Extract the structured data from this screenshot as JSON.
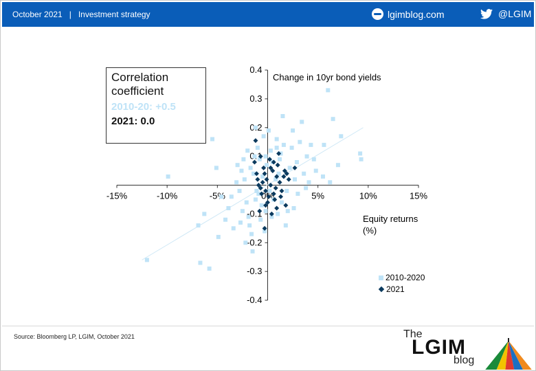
{
  "header": {
    "date": "October 2021",
    "separator": "|",
    "section": "Investment strategy",
    "blog_link": "lgimblog.com",
    "twitter": "@LGIM",
    "color": "#0a5db8"
  },
  "icons": [
    "web-icon",
    "twitter-bird-icon"
  ],
  "correlation_box": {
    "title_line1": "Correlation",
    "title_line2": "coefficient",
    "line_2010": "2010-20:  +0.5",
    "line_2021": "2021:  0.0"
  },
  "footer": {
    "source": "Source: Bloomberg LP, LGIM, October 2021",
    "logo_the": "The",
    "logo_main": "LGIM",
    "logo_blog": "blog"
  },
  "chart_data": {
    "type": "scatter",
    "title": "",
    "xlabel": "Equity returns (%)",
    "xlabel_line1": "Equity returns",
    "xlabel_line2": "(%)",
    "ylabel": "Change in 10yr bond yields",
    "xlim": [
      -15,
      15
    ],
    "ylim": [
      -0.4,
      0.4
    ],
    "x_ticks": [
      -15,
      -10,
      -5,
      0,
      5,
      10,
      15
    ],
    "x_tick_labels": [
      "-15%",
      "-10%",
      "-5%",
      "0%",
      "5%",
      "10%",
      "15%"
    ],
    "y_ticks": [
      0.4,
      0.3,
      0.2,
      0.1,
      0,
      -0.1,
      -0.2,
      -0.3,
      -0.4
    ],
    "y_tick_labels": [
      "0.4",
      "0.3",
      "0.2",
      "0.1",
      "",
      "-0.1",
      "-0.2",
      "-0.3",
      "-0.4"
    ],
    "grid": false,
    "legend_position": "bottom-right",
    "colors": {
      "s2010": "#bfe3f7",
      "s2021": "#0b3a5e",
      "trend": "#cfe8f6"
    },
    "trendline_2010_2020": {
      "x": [
        -12.5,
        9.5
      ],
      "y": [
        -0.26,
        0.2
      ]
    },
    "series": [
      {
        "name": "2010-2020",
        "marker": "square",
        "points": [
          [
            -12,
            -0.26
          ],
          [
            -9.9,
            0.03
          ],
          [
            -6.7,
            -0.27
          ],
          [
            -5.8,
            -0.29
          ],
          [
            -5.5,
            0.16
          ],
          [
            -5.1,
            0.06
          ],
          [
            -2.8,
            -0.02
          ],
          [
            -1.2,
            0.2
          ],
          [
            1.5,
            0.24
          ],
          [
            2.5,
            0.19
          ],
          [
            4.3,
            0.14
          ],
          [
            6,
            0.33
          ],
          [
            6.5,
            0.23
          ],
          [
            7,
            0.07
          ],
          [
            9.2,
            0.11
          ],
          [
            9.3,
            0.09
          ],
          [
            5.6,
            0.14
          ],
          [
            3.4,
            0.22
          ],
          [
            -3.9,
            -0.08
          ],
          [
            -4.2,
            -0.12
          ],
          [
            -3.4,
            -0.15
          ],
          [
            -2.2,
            -0.2
          ],
          [
            -1.6,
            -0.17
          ],
          [
            -2.6,
            0.05
          ],
          [
            4.8,
            0.05
          ],
          [
            5.5,
            0.03
          ],
          [
            6.2,
            0.01
          ],
          [
            -0.4,
            0.17
          ],
          [
            0.9,
            0.16
          ],
          [
            -3.1,
            0.01
          ],
          [
            2.6,
            -0.08
          ],
          [
            3.9,
            0.1
          ],
          [
            -1.5,
            -0.23
          ],
          [
            -4.6,
            -0.04
          ],
          [
            -4.9,
            -0.18
          ],
          [
            -6.3,
            -0.1
          ],
          [
            -6.9,
            -0.14
          ],
          [
            7.3,
            0.17
          ],
          [
            -2,
            0.12
          ],
          [
            1.8,
            -0.14
          ],
          [
            4.6,
            0.09
          ],
          [
            -0.8,
            0.09
          ],
          [
            0.3,
            0.12
          ],
          [
            -2.1,
            -0.06
          ],
          [
            -0.7,
            -0.12
          ],
          [
            -1.1,
            -0.02
          ],
          [
            -1.4,
            0.04
          ],
          [
            2.2,
            0.06
          ],
          [
            3.0,
            -0.03
          ],
          [
            1.2,
            0.09
          ],
          [
            -0.2,
            -0.09
          ],
          [
            0.6,
            -0.05
          ],
          [
            -1.9,
            -0.11
          ],
          [
            2.4,
            0.13
          ],
          [
            -2.5,
            -0.09
          ],
          [
            3.6,
            0.04
          ],
          [
            -3.0,
            0.07
          ],
          [
            0.1,
            0.19
          ],
          [
            1.9,
            -0.02
          ],
          [
            -1.0,
            0.13
          ],
          [
            -0.5,
            0.03
          ],
          [
            0.8,
            0.02
          ],
          [
            1.4,
            -0.06
          ],
          [
            -1.7,
            0.06
          ],
          [
            2.9,
            0.08
          ],
          [
            -0.3,
            -0.16
          ],
          [
            1.6,
            0.14
          ],
          [
            -2.7,
            -0.13
          ],
          [
            4.1,
            0.01
          ],
          [
            0.4,
            -0.11
          ],
          [
            -0.9,
            -0.03
          ],
          [
            -1.3,
            0.1
          ],
          [
            2.0,
            -0.09
          ],
          [
            1.1,
            0.04
          ],
          [
            -0.1,
            0.07
          ],
          [
            3.2,
            0.15
          ],
          [
            -2.3,
            0.02
          ],
          [
            -3.6,
            -0.04
          ],
          [
            0.5,
            0.08
          ],
          [
            1.3,
            0.11
          ],
          [
            -0.6,
            -0.07
          ],
          [
            2.7,
            0.02
          ],
          [
            -1.8,
            -0.14
          ],
          [
            0.2,
            -0.02
          ],
          [
            1.0,
            -0.1
          ],
          [
            -2.4,
            0.09
          ],
          [
            3.8,
            -0.01
          ],
          [
            -0.2,
            0.1
          ],
          [
            0.9,
            0.13
          ],
          [
            -1.2,
            -0.05
          ]
        ]
      },
      {
        "name": "2021",
        "marker": "diamond",
        "points": [
          [
            -1.2,
            0.155
          ],
          [
            -1.3,
            0.08
          ],
          [
            0.6,
            0.08
          ],
          [
            -0.7,
            0.1
          ],
          [
            0.2,
            0.09
          ],
          [
            2.7,
            0.06
          ],
          [
            1.7,
            0.05
          ],
          [
            -0.3,
            0.04
          ],
          [
            0.9,
            0.03
          ],
          [
            -1.0,
            0.02
          ],
          [
            0.3,
            0.0
          ],
          [
            1.4,
            -0.02
          ],
          [
            -0.6,
            -0.03
          ],
          [
            0.7,
            -0.05
          ],
          [
            -0.2,
            -0.07
          ],
          [
            1.8,
            -0.07
          ],
          [
            0.4,
            -0.1
          ],
          [
            -0.8,
            -0.09
          ],
          [
            -0.3,
            -0.15
          ],
          [
            1.0,
            0.07
          ],
          [
            -0.4,
            0.06
          ],
          [
            1.2,
            0.01
          ],
          [
            -0.9,
            0.0
          ],
          [
            0.1,
            -0.04
          ],
          [
            1.6,
            0.03
          ],
          [
            0.5,
            0.05
          ],
          [
            -0.1,
            0.02
          ],
          [
            0.8,
            -0.01
          ],
          [
            -1.1,
            0.04
          ],
          [
            1.3,
            -0.04
          ],
          [
            0.0,
            -0.06
          ],
          [
            -0.5,
            0.01
          ],
          [
            2.1,
            0.02
          ],
          [
            0.6,
            -0.03
          ],
          [
            -0.7,
            -0.01
          ],
          [
            1.1,
            0.11
          ],
          [
            0.3,
            0.06
          ],
          [
            -0.2,
            -0.02
          ],
          [
            0.9,
            -0.08
          ],
          [
            1.9,
            0.04
          ]
        ]
      }
    ]
  }
}
